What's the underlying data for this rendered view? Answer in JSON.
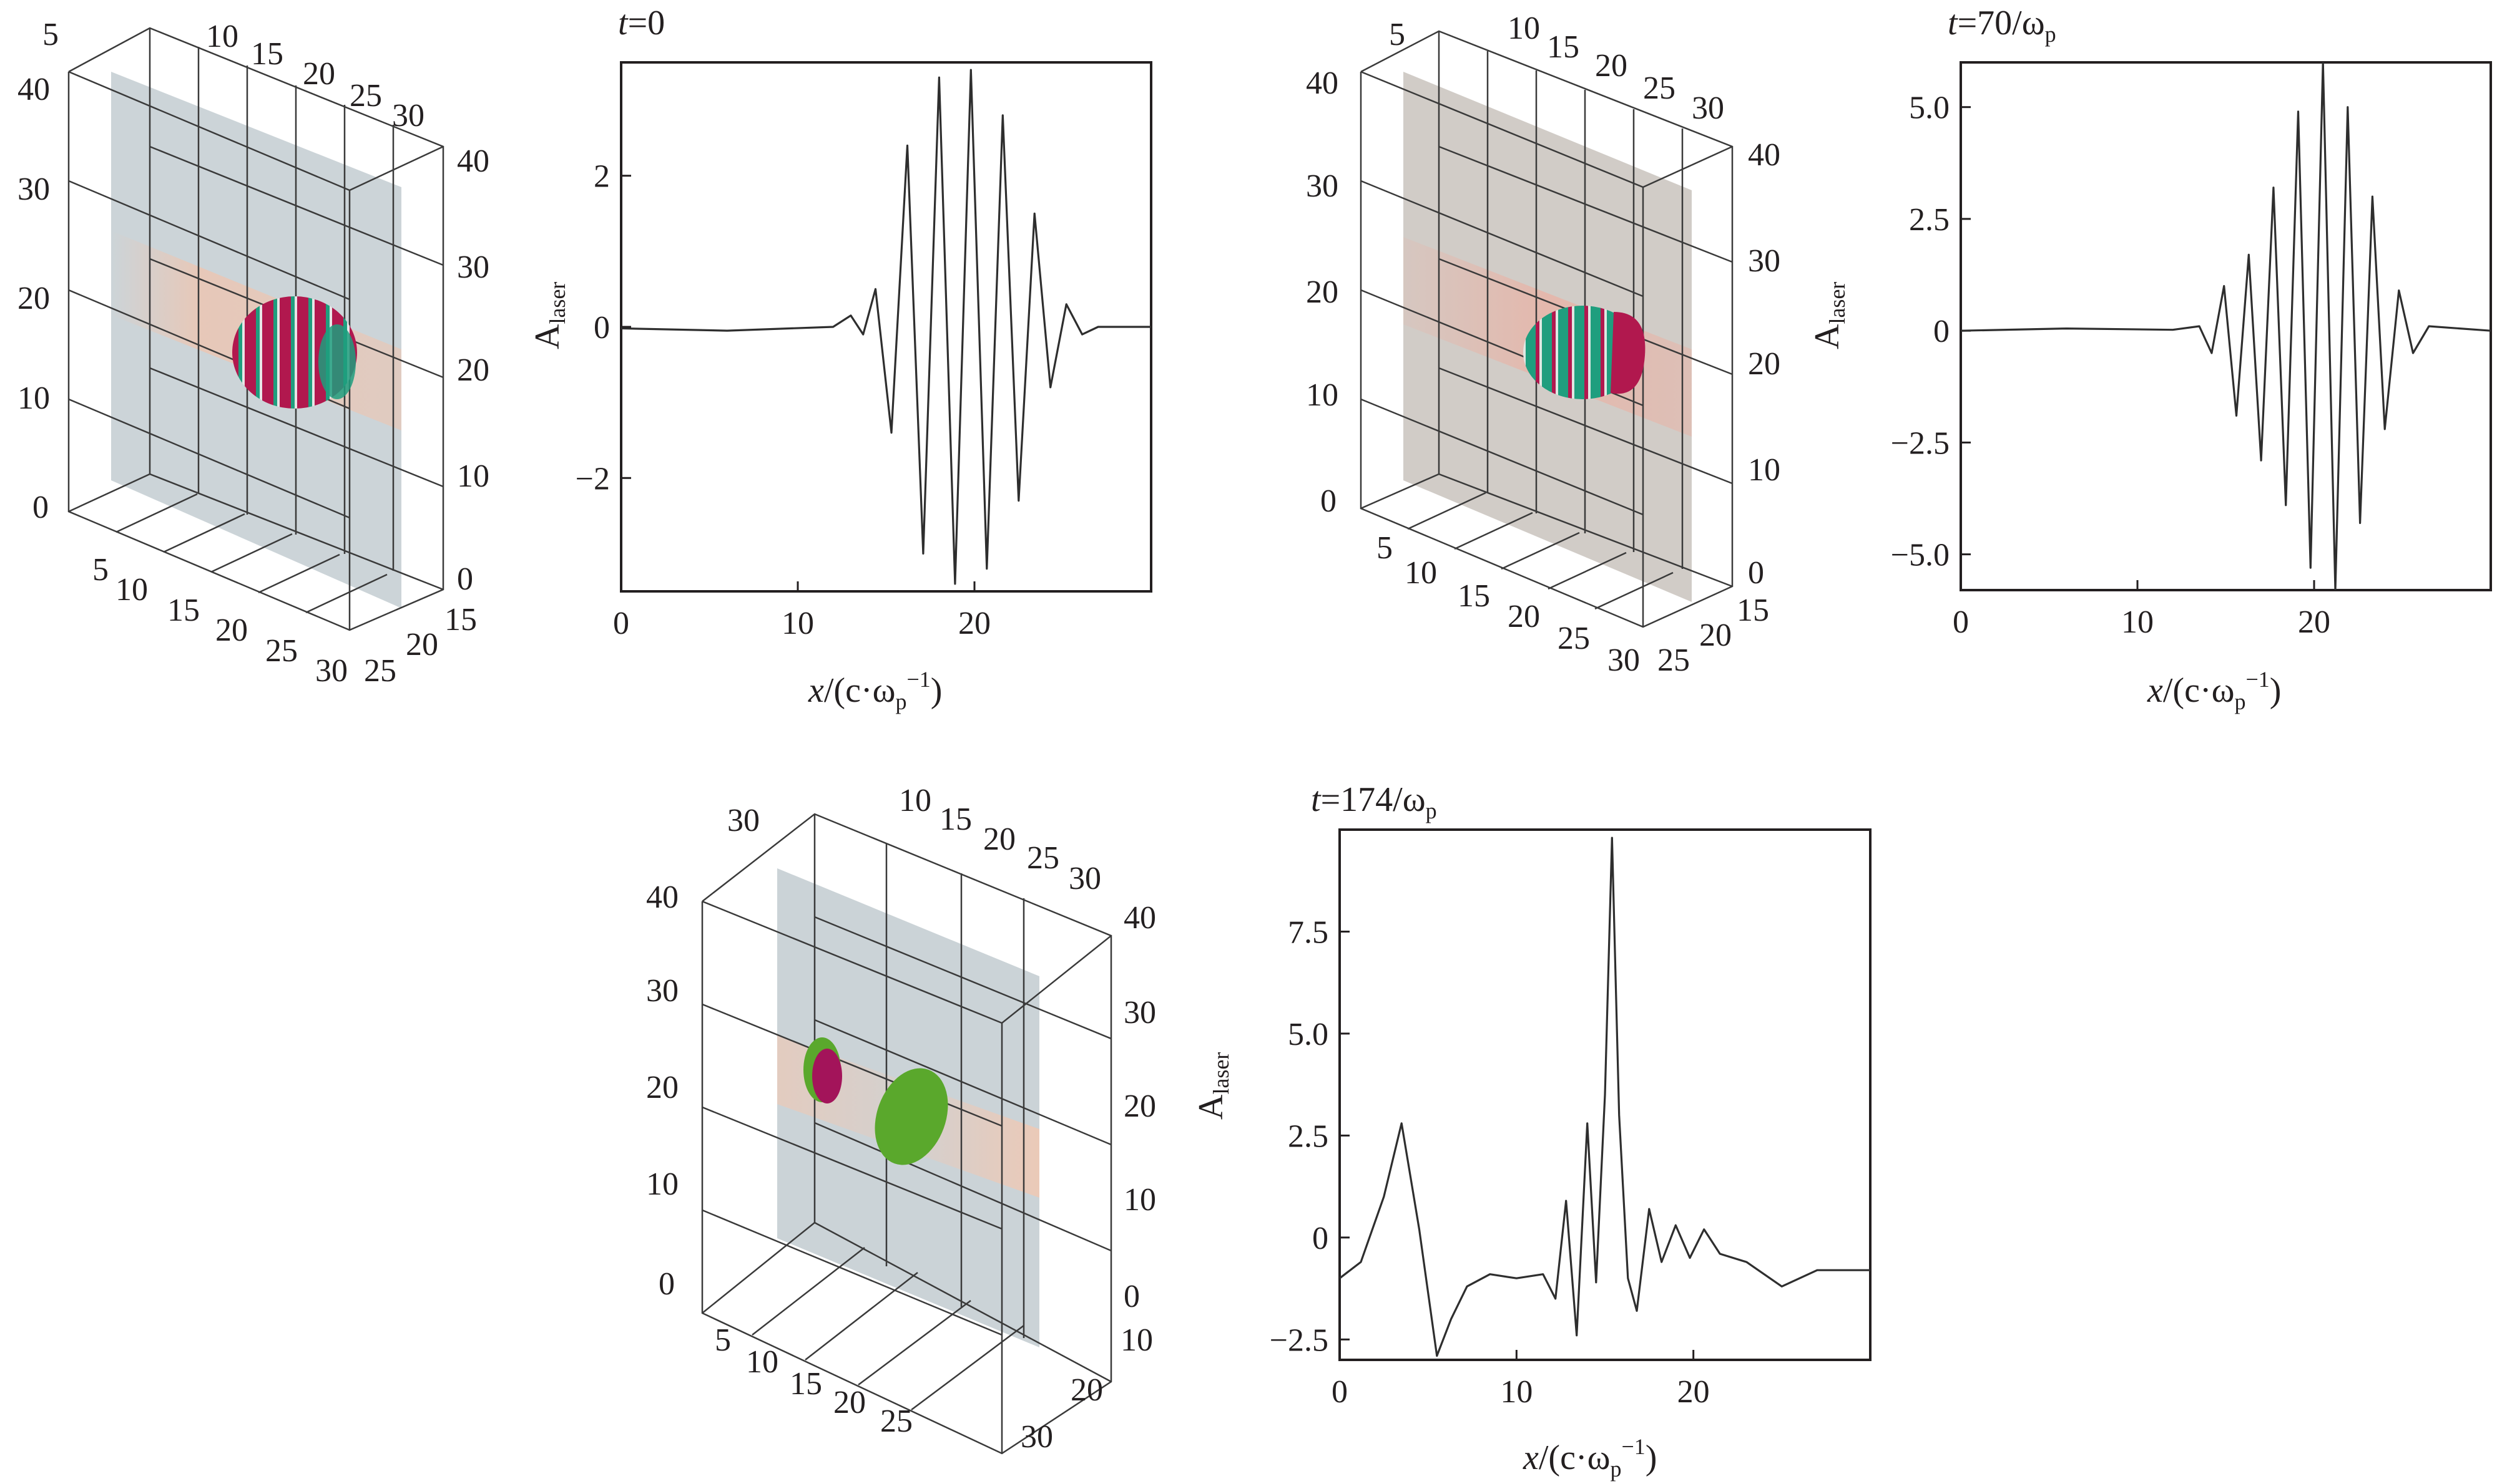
{
  "chart_data": [
    {
      "type": "line",
      "panel": "lineout-1",
      "title_italic": "t",
      "title_rest": "=0",
      "ylabel_main": "A",
      "ylabel_sub": "laser",
      "xlabel_italic": "x",
      "xlabel_rest": "/(c·ω",
      "xlabel_sub": "p",
      "xlabel_sup": "−1",
      "xlabel_close": ")",
      "xlim": [
        0,
        30
      ],
      "ylim": [
        -3.5,
        3.5
      ],
      "xticks": [
        0,
        10,
        20
      ],
      "xtick_labels": [
        "0",
        "10",
        "20"
      ],
      "yticks": [
        -2,
        0,
        2
      ],
      "ytick_labels": [
        "−2",
        "0",
        "2"
      ],
      "series": [
        {
          "name": "A_laser",
          "x": [
            0,
            6,
            12,
            13,
            13.7,
            14.4,
            15.3,
            16.2,
            17.1,
            18.0,
            18.9,
            19.8,
            20.7,
            21.6,
            22.5,
            23.4,
            24.3,
            25.2,
            26.1,
            27.0,
            30
          ],
          "y": [
            -0.02,
            -0.05,
            0,
            0.15,
            -0.1,
            0.5,
            -1.4,
            2.4,
            -3.0,
            3.3,
            -3.4,
            3.4,
            -3.2,
            2.8,
            -2.3,
            1.5,
            -0.8,
            0.3,
            -0.1,
            0,
            0
          ]
        }
      ]
    },
    {
      "type": "line",
      "panel": "lineout-2",
      "title_italic": "t",
      "title_rest": "=70/ω",
      "title_sub": "p",
      "ylabel_main": "A",
      "ylabel_sub": "laser",
      "xlabel_italic": "x",
      "xlabel_rest": "/(c·ω",
      "xlabel_sub": "p",
      "xlabel_sup": "−1",
      "xlabel_close": ")",
      "xlim": [
        0,
        30
      ],
      "ylim": [
        -5.8,
        6.0
      ],
      "xticks": [
        0,
        10,
        20
      ],
      "xtick_labels": [
        "0",
        "10",
        "20"
      ],
      "yticks": [
        -5,
        -2.5,
        0,
        2.5,
        5
      ],
      "ytick_labels": [
        "−5.0",
        "−2.5",
        "0",
        "2.5",
        "5.0"
      ],
      "series": [
        {
          "name": "A_laser",
          "x": [
            0,
            6,
            12,
            13.5,
            14.2,
            14.9,
            15.6,
            16.3,
            17.0,
            17.7,
            18.4,
            19.1,
            19.8,
            20.5,
            21.2,
            21.9,
            22.6,
            23.3,
            24.0,
            24.8,
            25.6,
            26.5,
            30
          ],
          "y": [
            0,
            0.05,
            0.02,
            0.1,
            -0.5,
            1.0,
            -1.9,
            1.7,
            -2.9,
            3.2,
            -3.9,
            4.9,
            -5.3,
            6.0,
            -5.8,
            5.0,
            -4.3,
            3.0,
            -2.2,
            0.9,
            -0.5,
            0.1,
            0
          ]
        }
      ]
    },
    {
      "type": "line",
      "panel": "lineout-3",
      "title_italic": "t",
      "title_rest": "=174/ω",
      "title_sub": "p",
      "ylabel_main": "A",
      "ylabel_sub": "laser",
      "xlabel_italic": "x",
      "xlabel_rest": "/(c·ω",
      "xlabel_sub": "p",
      "xlabel_sup": "−1",
      "xlabel_close": ")",
      "xlim": [
        0,
        30
      ],
      "ylim": [
        -3.0,
        10.0
      ],
      "xticks": [
        0,
        10,
        20
      ],
      "xtick_labels": [
        "0",
        "10",
        "20"
      ],
      "yticks": [
        -2.5,
        0,
        2.5,
        5,
        7.5
      ],
      "ytick_labels": [
        "−2.5",
        "0",
        "2.5",
        "5.0",
        "7.5"
      ],
      "series": [
        {
          "name": "A_laser",
          "x": [
            0,
            1.2,
            2.5,
            3.5,
            4.5,
            5.5,
            6.3,
            7.2,
            8.5,
            10,
            11.5,
            12.2,
            12.8,
            13.4,
            14.0,
            14.5,
            15.0,
            15.4,
            15.8,
            16.3,
            16.8,
            17.5,
            18.2,
            19.0,
            19.8,
            20.6,
            21.5,
            23,
            25,
            27,
            30
          ],
          "y": [
            -1.0,
            -0.6,
            1.0,
            2.8,
            0.2,
            -2.9,
            -2.0,
            -1.2,
            -0.9,
            -1.0,
            -0.9,
            -1.5,
            0.9,
            -2.4,
            2.8,
            -1.1,
            3.5,
            9.8,
            3.0,
            -1.0,
            -1.8,
            0.7,
            -0.6,
            0.3,
            -0.5,
            0.2,
            -0.4,
            -0.6,
            -1.2,
            -0.8,
            -0.8
          ]
        }
      ]
    }
  ],
  "cube_panels": [
    {
      "top_ticks": [
        "5",
        "10",
        "15",
        "20",
        "25",
        "30"
      ],
      "left_ticks": [
        "0",
        "10",
        "20",
        "30",
        "40"
      ],
      "right_ticks": [
        "0",
        "10",
        "20",
        "30",
        "40"
      ],
      "bottom_ticks": [
        "5",
        "10",
        "15",
        "20",
        "25",
        "30"
      ],
      "depth_ticks": [
        "25",
        "20",
        "15"
      ],
      "color_magenta": "#b1184e",
      "color_teal": "#1f9e7e",
      "color_slab": "#c9d2d6",
      "color_beam": "#f0c4ae"
    },
    {
      "top_ticks": [
        "5",
        "10",
        "15",
        "20",
        "25",
        "30"
      ],
      "left_ticks": [
        "0",
        "10",
        "20",
        "30",
        "40"
      ],
      "right_ticks": [
        "0",
        "10",
        "20",
        "30",
        "40"
      ],
      "bottom_ticks": [
        "5",
        "10",
        "15",
        "20",
        "25",
        "30"
      ],
      "depth_ticks": [
        "25",
        "20",
        "15"
      ],
      "color_magenta": "#b1184e",
      "color_teal": "#1f9e7e",
      "color_slab": "#cfc9c4",
      "color_beam": "#e9b3a6"
    },
    {
      "top_ticks": [
        "30",
        "10",
        "15",
        "20",
        "25",
        "30"
      ],
      "left_ticks": [
        "0",
        "10",
        "20",
        "30",
        "40"
      ],
      "right_ticks": [
        "0",
        "10",
        "20",
        "30",
        "40"
      ],
      "bottom_ticks": [
        "5",
        "10",
        "15",
        "20",
        "25"
      ],
      "depth_ticks": [
        "10",
        "20",
        "30"
      ],
      "color_magenta": "#a3145a",
      "color_green": "#5aa82c",
      "color_slab": "#c8d1d5",
      "color_beam": "#f3c7b0"
    }
  ]
}
